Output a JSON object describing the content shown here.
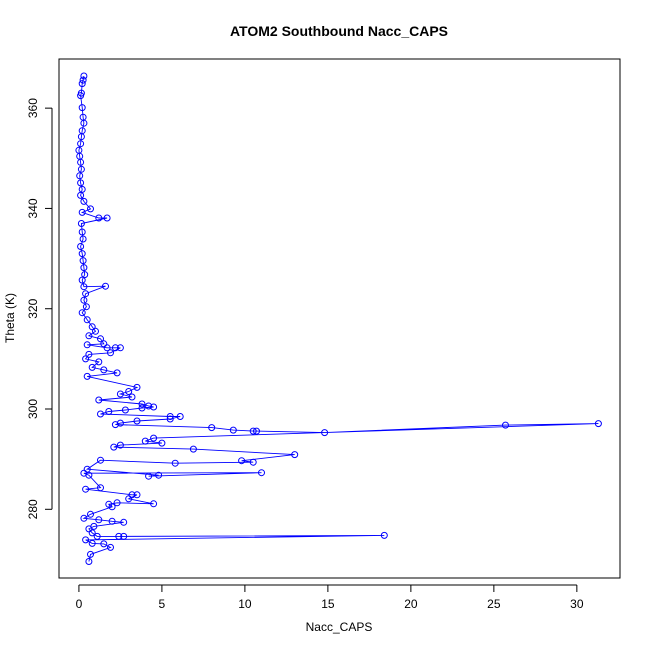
{
  "chart_data": {
    "type": "line",
    "title": "ATOM2 Southbound Nacc_CAPS",
    "xlabel": "Nacc_CAPS",
    "ylabel": "Theta (K)",
    "xlim": [
      -1.2,
      32.6
    ],
    "ylim": [
      266.3,
      369.8
    ],
    "x_ticks": [
      0,
      5,
      10,
      15,
      20,
      25,
      30
    ],
    "y_ticks": [
      280,
      300,
      320,
      340,
      360
    ],
    "grid": false,
    "legend": "none",
    "series": [
      {
        "color": "#0000ff",
        "marker": "open-circle",
        "line": true,
        "points": [
          [
            0.3,
            366.4
          ],
          [
            0.25,
            365.6
          ],
          [
            0.2,
            364.9
          ],
          [
            0.15,
            363.0
          ],
          [
            0.1,
            362.5
          ],
          [
            0.2,
            360.1
          ],
          [
            0.25,
            358.2
          ],
          [
            0.3,
            357.0
          ],
          [
            0.2,
            355.5
          ],
          [
            0.15,
            354.3
          ],
          [
            0.1,
            352.9
          ],
          [
            0.0,
            351.6
          ],
          [
            0.05,
            350.4
          ],
          [
            0.1,
            349.2
          ],
          [
            0.15,
            347.8
          ],
          [
            0.05,
            346.5
          ],
          [
            0.1,
            345.1
          ],
          [
            0.2,
            343.8
          ],
          [
            0.1,
            342.6
          ],
          [
            0.3,
            341.4
          ],
          [
            0.7,
            339.9
          ],
          [
            0.2,
            339.2
          ],
          [
            1.2,
            338.1
          ],
          [
            1.7,
            338.1
          ],
          [
            0.15,
            337.0
          ],
          [
            0.2,
            335.3
          ],
          [
            0.25,
            333.9
          ],
          [
            0.1,
            332.4
          ],
          [
            0.2,
            331.0
          ],
          [
            0.25,
            329.6
          ],
          [
            0.3,
            328.2
          ],
          [
            0.35,
            326.8
          ],
          [
            0.2,
            325.7
          ],
          [
            0.3,
            324.4
          ],
          [
            1.6,
            324.5
          ],
          [
            0.4,
            323.0
          ],
          [
            0.3,
            321.7
          ],
          [
            0.45,
            320.4
          ],
          [
            0.2,
            319.2
          ],
          [
            0.5,
            317.8
          ],
          [
            0.8,
            316.4
          ],
          [
            1.0,
            315.5
          ],
          [
            0.6,
            314.6
          ],
          [
            1.3,
            314.0
          ],
          [
            1.5,
            313.0
          ],
          [
            0.5,
            312.8
          ],
          [
            1.7,
            312.2
          ],
          [
            2.2,
            312.2
          ],
          [
            2.5,
            312.2
          ],
          [
            1.9,
            311.2
          ],
          [
            0.6,
            310.9
          ],
          [
            0.4,
            310.0
          ],
          [
            1.2,
            309.4
          ],
          [
            0.8,
            308.3
          ],
          [
            1.5,
            307.8
          ],
          [
            2.3,
            307.2
          ],
          [
            0.5,
            306.5
          ],
          [
            3.5,
            304.3
          ],
          [
            3.0,
            303.5
          ],
          [
            2.5,
            303.0
          ],
          [
            3.2,
            302.4
          ],
          [
            1.2,
            301.8
          ],
          [
            3.8,
            301.0
          ],
          [
            4.2,
            300.6
          ],
          [
            4.5,
            300.4
          ],
          [
            3.8,
            300.2
          ],
          [
            2.8,
            299.8
          ],
          [
            1.8,
            299.5
          ],
          [
            1.3,
            299.0
          ],
          [
            5.5,
            298.5
          ],
          [
            6.1,
            298.5
          ],
          [
            5.5,
            298.0
          ],
          [
            3.5,
            297.6
          ],
          [
            2.5,
            297.2
          ],
          [
            2.2,
            296.9
          ],
          [
            8.0,
            296.3
          ],
          [
            9.3,
            295.8
          ],
          [
            10.5,
            295.6
          ],
          [
            10.7,
            295.6
          ],
          [
            14.8,
            295.3
          ],
          [
            25.7,
            296.8
          ],
          [
            31.3,
            297.1
          ],
          [
            4.5,
            294.2
          ],
          [
            4.0,
            293.6
          ],
          [
            5.0,
            293.2
          ],
          [
            2.5,
            292.8
          ],
          [
            2.1,
            292.4
          ],
          [
            6.9,
            292.0
          ],
          [
            13.0,
            290.9
          ],
          [
            9.8,
            289.7
          ],
          [
            10.5,
            289.4
          ],
          [
            5.8,
            289.2
          ],
          [
            1.3,
            289.8
          ],
          [
            0.5,
            288.0
          ],
          [
            4.8,
            286.8
          ],
          [
            4.2,
            286.6
          ],
          [
            11.0,
            287.3
          ],
          [
            0.3,
            287.2
          ],
          [
            0.6,
            286.8
          ],
          [
            1.3,
            284.3
          ],
          [
            0.4,
            284.0
          ],
          [
            3.2,
            282.9
          ],
          [
            3.5,
            282.9
          ],
          [
            3.0,
            282.1
          ],
          [
            4.5,
            281.1
          ],
          [
            2.3,
            281.3
          ],
          [
            1.8,
            281.0
          ],
          [
            2.0,
            280.5
          ],
          [
            0.7,
            279.0
          ],
          [
            0.3,
            278.2
          ],
          [
            1.2,
            277.9
          ],
          [
            2.0,
            277.6
          ],
          [
            2.7,
            277.4
          ],
          [
            0.9,
            276.6
          ],
          [
            0.6,
            276.1
          ],
          [
            0.8,
            275.3
          ],
          [
            1.1,
            274.6
          ],
          [
            2.4,
            274.6
          ],
          [
            2.7,
            274.6
          ],
          [
            18.4,
            274.8
          ],
          [
            0.4,
            273.9
          ],
          [
            0.8,
            273.2
          ],
          [
            1.5,
            273.1
          ],
          [
            1.9,
            272.4
          ],
          [
            0.7,
            271.0
          ],
          [
            0.6,
            269.6
          ]
        ]
      }
    ]
  }
}
